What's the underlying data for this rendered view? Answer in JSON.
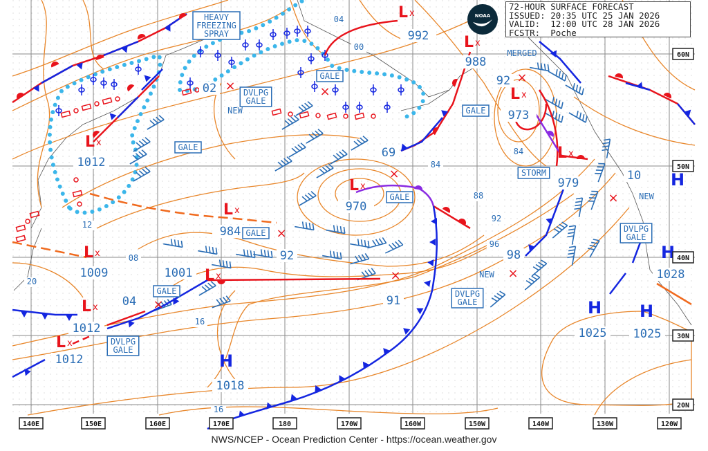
{
  "header": {
    "title": "72-HOUR SURFACE FORECAST",
    "issued": "ISSUED: 20:35 UTC 25 JAN 2026",
    "valid": "VALID:  12:00 UTC 28 JAN 2026",
    "forecaster": "FCSTR:  Poche"
  },
  "logo_text": "NOAA",
  "footer": "NWS/NCEP - Ocean Prediction Center - https://ocean.weather.gov",
  "lon_labels": [
    "140E",
    "150E",
    "160E",
    "170E",
    "180",
    "170W",
    "160W",
    "150W",
    "140W",
    "130W",
    "120W"
  ],
  "lat_labels": [
    "60N",
    "50N",
    "40N",
    "30N",
    "20N"
  ],
  "colors": {
    "isobar": "#e8862a",
    "low": "#e8141c",
    "high": "#1426e0",
    "label": "#2a6db5",
    "cold_front": "#1426e0",
    "warm_front": "#e8141c",
    "occluded": "#8a2be2",
    "freezing_spray": "#3bb6ea"
  },
  "lows": [
    {
      "symbol": "L",
      "pressure": "992"
    },
    {
      "symbol": "L",
      "pressure": "988"
    },
    {
      "symbol": "L",
      "pressure": "1012"
    },
    {
      "symbol": "L",
      "pressure": "973"
    },
    {
      "symbol": "L",
      "pressure": "979"
    },
    {
      "symbol": "L",
      "pressure": "970"
    },
    {
      "symbol": "L",
      "pressure": "984"
    },
    {
      "symbol": "L",
      "pressure": "1009"
    },
    {
      "symbol": "L",
      "pressure": "1001"
    },
    {
      "symbol": "L",
      "pressure": "1012"
    },
    {
      "symbol": "L",
      "pressure": "1012"
    }
  ],
  "highs": [
    {
      "symbol": "H",
      "pressure": "1018"
    },
    {
      "symbol": "H",
      "pressure": "1025"
    },
    {
      "symbol": "H",
      "pressure": "1025"
    },
    {
      "symbol": "H",
      "pressure": "1028"
    },
    {
      "symbol": "H",
      "pressure": ""
    }
  ],
  "isobar_labels": [
    "04",
    "00",
    "02",
    "69",
    "84",
    "84",
    "88",
    "92",
    "96",
    "98",
    "92",
    "92",
    "91",
    "12",
    "08",
    "20",
    "04",
    "16",
    "16",
    "10"
  ],
  "warnings": [
    {
      "lines": [
        "HEAVY",
        "FREEZING",
        "SPRAY"
      ]
    },
    {
      "lines": [
        "DVLPG",
        "GALE"
      ]
    },
    {
      "lines": [
        "GALE"
      ]
    },
    {
      "lines": [
        "GALE"
      ]
    },
    {
      "lines": [
        "GALE"
      ]
    },
    {
      "lines": [
        "STORM"
      ]
    },
    {
      "lines": [
        "GALE"
      ]
    },
    {
      "lines": [
        "GALE"
      ]
    },
    {
      "lines": [
        "GALE"
      ]
    },
    {
      "lines": [
        "DVLPG",
        "GALE"
      ]
    },
    {
      "lines": [
        "DVLPG",
        "GALE"
      ]
    },
    {
      "lines": [
        "DVLPG",
        "GALE"
      ]
    }
  ],
  "notes": [
    "NEW",
    "MERGED",
    "NEW",
    "NEW"
  ]
}
